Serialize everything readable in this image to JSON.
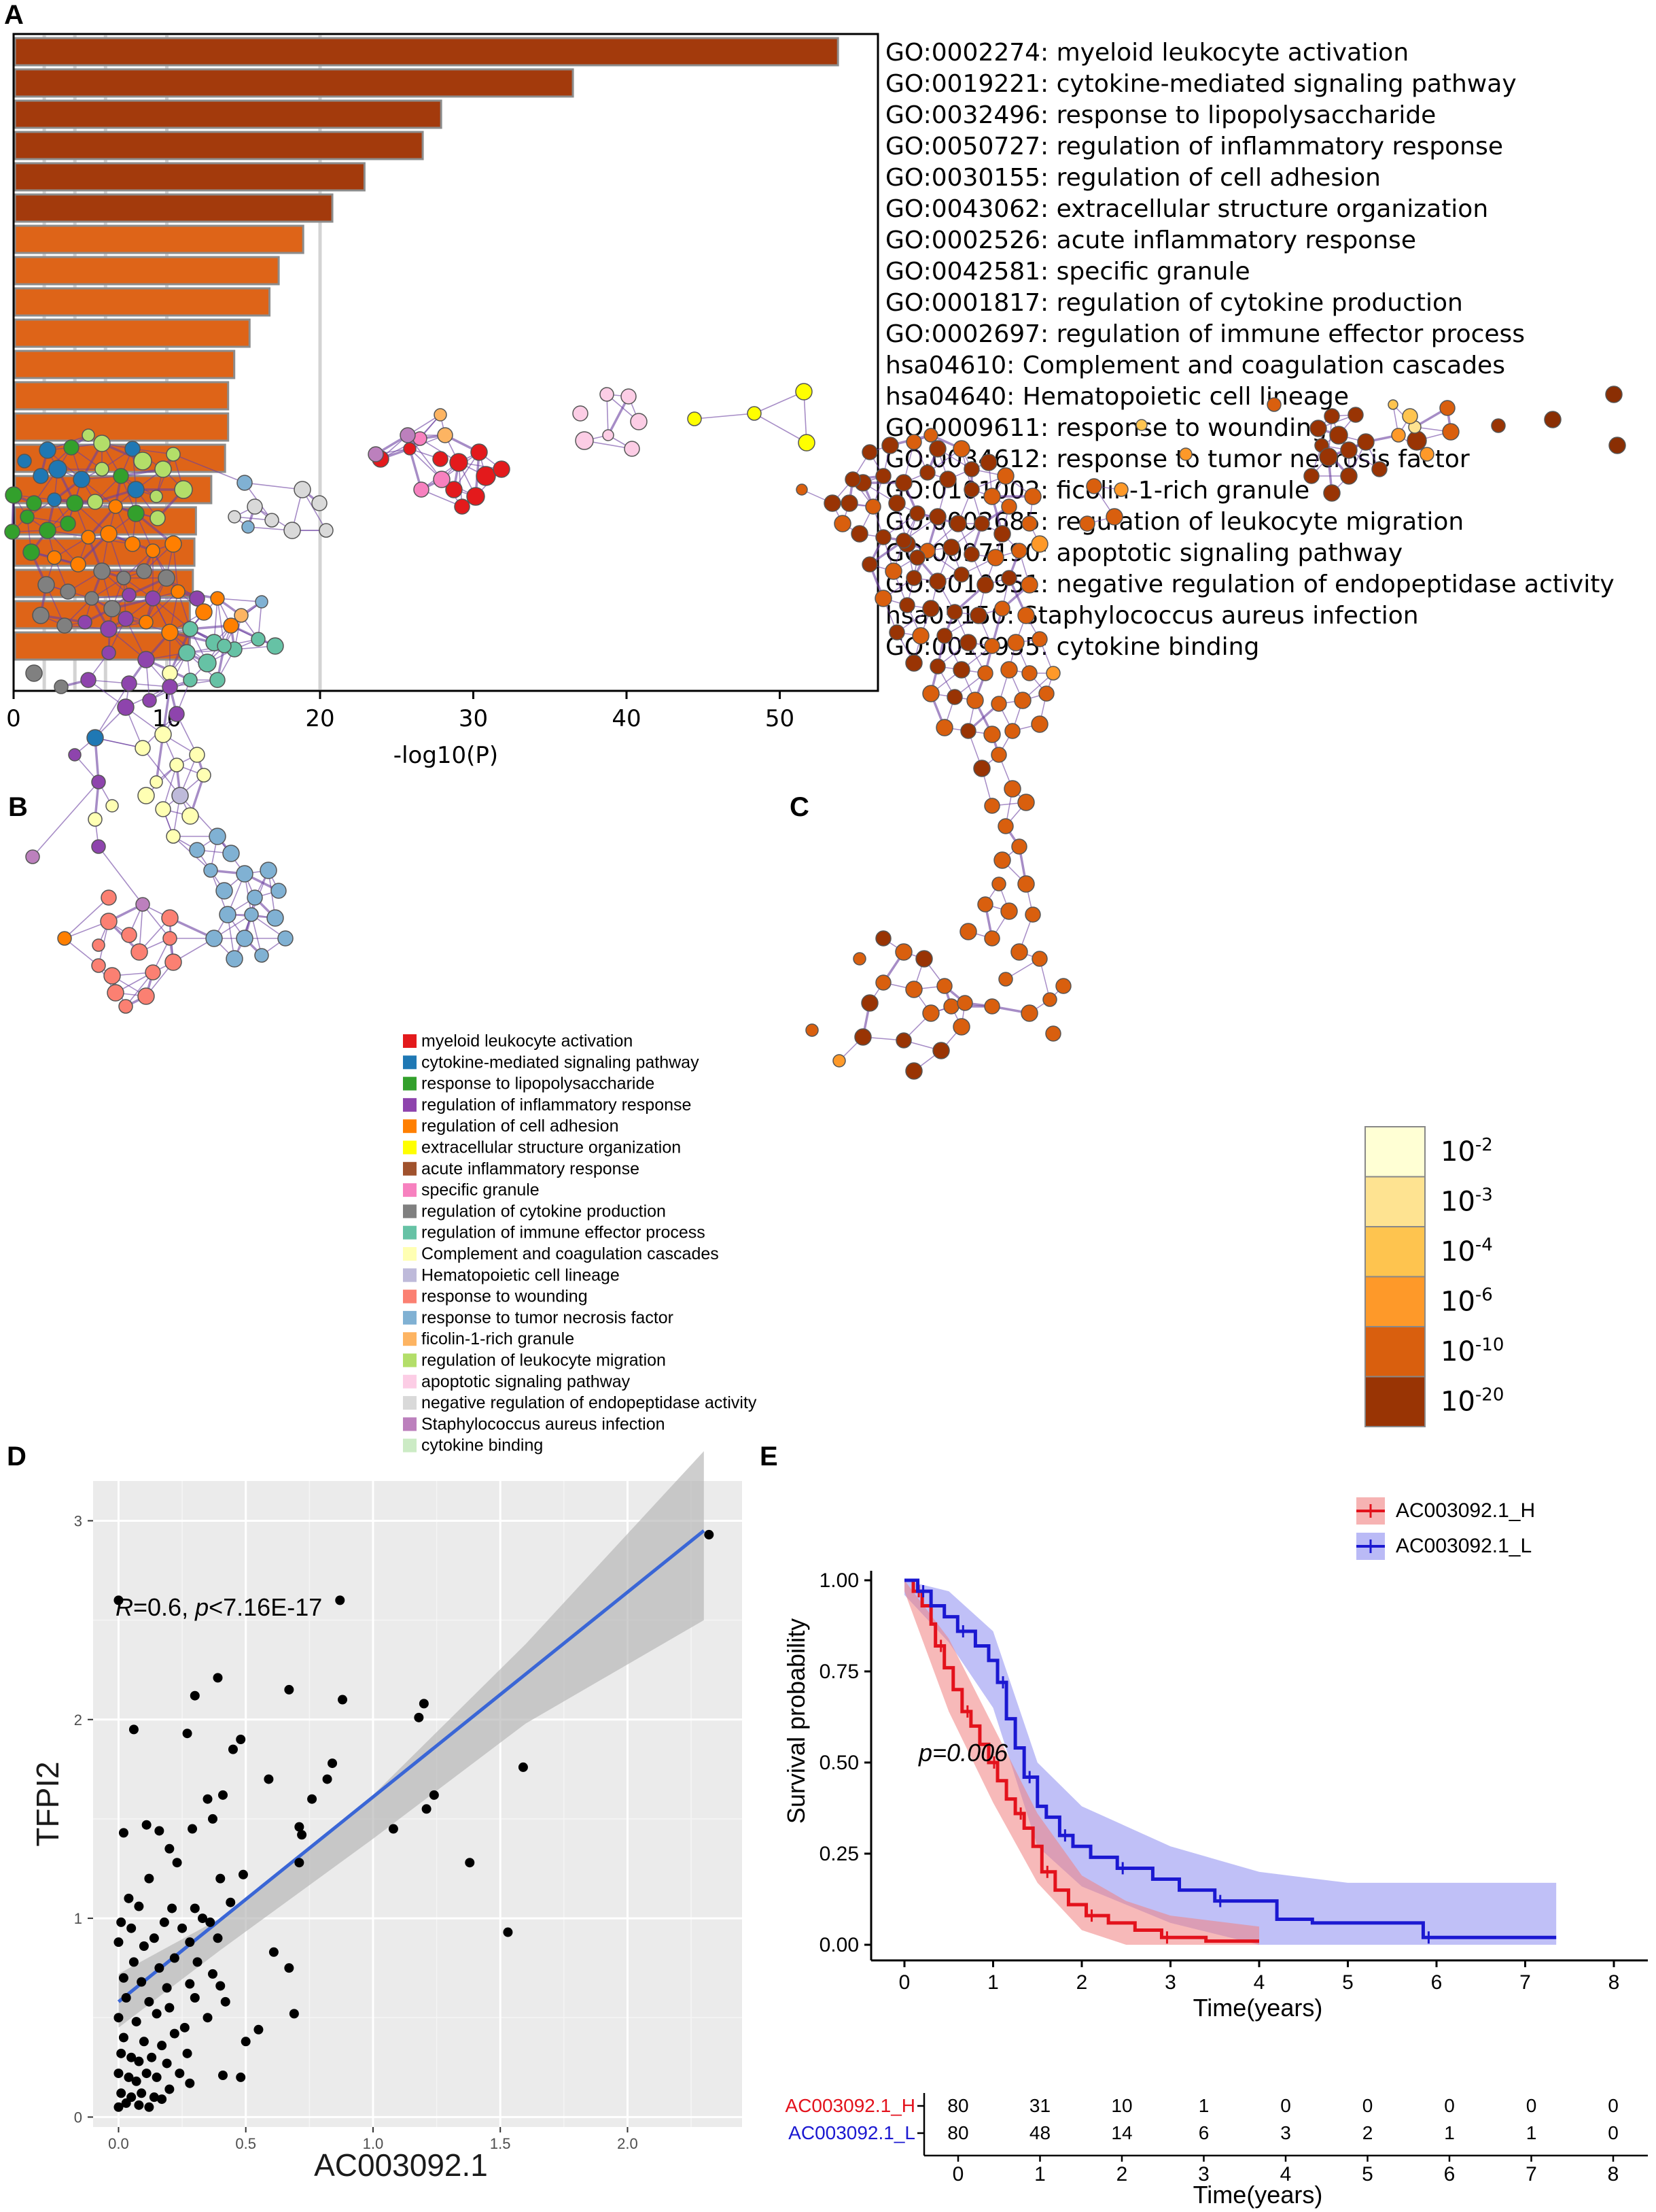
{
  "panel_labels": {
    "a": "A",
    "b": "B",
    "c": "C",
    "d": "D",
    "e": "E"
  },
  "colors": {
    "bar_dark": "#a33a0c",
    "bar_light": "#de6418",
    "reg_line": "#3a66d6",
    "km_high": "#e3121c",
    "km_low": "#1b18d1",
    "edge": "#6a3fa0"
  },
  "chart_data": [
    {
      "id": "A",
      "type": "bar",
      "orientation": "horizontal",
      "xlabel": "-log10(P)",
      "xlim": [
        0,
        56
      ],
      "xticks": [
        0,
        10,
        20,
        30,
        40,
        50
      ],
      "grid_lines": [
        2,
        4,
        6,
        10,
        20
      ],
      "categories": [
        "GO:0002274: myeloid leukocyte activation",
        "GO:0019221: cytokine-mediated signaling pathway",
        "GO:0032496: response to lipopolysaccharide",
        "GO:0050727: regulation of inflammatory response",
        "GO:0030155: regulation of cell adhesion",
        "GO:0043062: extracellular structure organization",
        "GO:0002526: acute inflammatory response",
        "GO:0042581: specific granule",
        "GO:0001817: regulation of cytokine production",
        "GO:0002697: regulation of immune effector process",
        "hsa04610: Complement and coagulation cascades",
        "hsa04640: Hematopoietic cell lineage",
        "GO:0009611: response to wounding",
        "GO:0034612: response to tumor necrosis factor",
        "GO:0101002: ficolin-1-rich granule",
        "GO:0002685: regulation of leukocyte migration",
        "GO:0097190: apoptotic signaling pathway",
        "GO:0010951: negative regulation of endopeptidase activity",
        "hsa05150: Staphylococcus aureus infection",
        "GO:0019955: cytokine binding"
      ],
      "values": [
        53.8,
        36.5,
        27.9,
        26.7,
        22.9,
        20.8,
        18.9,
        17.3,
        16.7,
        15.4,
        14.4,
        14.0,
        14.0,
        13.8,
        12.9,
        11.9,
        11.8,
        11.7,
        11.5,
        11.5
      ],
      "dark_count": 6
    },
    {
      "id": "B",
      "type": "network",
      "legend": [
        {
          "label": "myeloid leukocyte activation",
          "color": "#e31a1c"
        },
        {
          "label": "cytokine-mediated signaling pathway",
          "color": "#1f78b4"
        },
        {
          "label": "response to lipopolysaccharide",
          "color": "#33a02c"
        },
        {
          "label": "regulation of inflammatory response",
          "color": "#8e44ad"
        },
        {
          "label": "regulation of cell adhesion",
          "color": "#ff7f00"
        },
        {
          "label": "extracellular structure organization",
          "color": "#ffff00"
        },
        {
          "label": "acute inflammatory response",
          "color": "#a0522d"
        },
        {
          "label": "specific granule",
          "color": "#f781bf"
        },
        {
          "label": "regulation of cytokine production",
          "color": "#808080"
        },
        {
          "label": "regulation of immune effector process",
          "color": "#66c2a5"
        },
        {
          "label": "Complement and coagulation cascades",
          "color": "#ffffb3"
        },
        {
          "label": "Hematopoietic cell lineage",
          "color": "#bebada"
        },
        {
          "label": "response to wounding",
          "color": "#fb8072"
        },
        {
          "label": "response to tumor necrosis factor",
          "color": "#80b1d3"
        },
        {
          "label": "ficolin-1-rich granule",
          "color": "#fdb462"
        },
        {
          "label": "regulation of leukocyte migration",
          "color": "#b3de69"
        },
        {
          "label": "apoptotic signaling pathway",
          "color": "#fccde5"
        },
        {
          "label": "negative regulation of endopeptidase activity",
          "color": "#d9d9d9"
        },
        {
          "label": "Staphylococcus aureus infection",
          "color": "#bc80bd"
        },
        {
          "label": "cytokine binding",
          "color": "#ccebc5"
        }
      ]
    },
    {
      "id": "C",
      "type": "network",
      "colorbar": [
        {
          "base": "10",
          "exp": "-2",
          "color": "#ffffd4"
        },
        {
          "base": "10",
          "exp": "-3",
          "color": "#fee391"
        },
        {
          "base": "10",
          "exp": "-4",
          "color": "#fec44f"
        },
        {
          "base": "10",
          "exp": "-6",
          "color": "#fe9929"
        },
        {
          "base": "10",
          "exp": "-10",
          "color": "#d95f0e"
        },
        {
          "base": "10",
          "exp": "-20",
          "color": "#993404"
        }
      ]
    },
    {
      "id": "D",
      "type": "scatter",
      "xlabel": "AC003092.1",
      "ylabel": "TFPI2",
      "xlim": [
        -0.1,
        2.45
      ],
      "ylim": [
        -0.05,
        3.2
      ],
      "xticks": [
        0.0,
        0.5,
        1.0,
        1.5,
        2.0
      ],
      "xtick_labels": [
        "0.0",
        "0.5",
        "1.0",
        "1.5",
        "2.0"
      ],
      "yticks": [
        0,
        1,
        2,
        3
      ],
      "yticks_labels": [
        "0",
        "1",
        "2",
        "3"
      ],
      "annotation": {
        "r_sym": "R",
        "r_val": "=0.6, ",
        "p_sym": "p",
        "p_val": "<7.16E-17"
      },
      "regression": {
        "x0": 0.0,
        "y0": 0.58,
        "x1": 2.3,
        "y1": 2.95
      },
      "band": {
        "upper": [
          [
            0.0,
            0.72
          ],
          [
            0.4,
            1.0
          ],
          [
            1.0,
            1.62
          ],
          [
            1.6,
            2.38
          ],
          [
            2.3,
            3.35
          ]
        ],
        "lower": [
          [
            0.0,
            0.45
          ],
          [
            0.4,
            0.84
          ],
          [
            1.0,
            1.4
          ],
          [
            1.6,
            1.98
          ],
          [
            2.3,
            2.5
          ]
        ]
      },
      "points": [
        [
          0.0,
          2.6
        ],
        [
          2.32,
          2.93
        ],
        [
          0.87,
          2.6
        ],
        [
          0.39,
          2.21
        ],
        [
          0.3,
          2.12
        ],
        [
          0.67,
          2.15
        ],
        [
          0.88,
          2.1
        ],
        [
          1.2,
          2.08
        ],
        [
          1.18,
          2.01
        ],
        [
          0.48,
          1.9
        ],
        [
          0.27,
          1.93
        ],
        [
          0.45,
          1.85
        ],
        [
          1.59,
          1.76
        ],
        [
          0.84,
          1.78
        ],
        [
          0.06,
          1.95
        ],
        [
          0.59,
          1.7
        ],
        [
          1.24,
          1.62
        ],
        [
          0.82,
          1.7
        ],
        [
          0.76,
          1.6
        ],
        [
          1.21,
          1.55
        ],
        [
          0.35,
          1.6
        ],
        [
          0.41,
          1.62
        ],
        [
          0.02,
          1.43
        ],
        [
          0.11,
          1.47
        ],
        [
          0.16,
          1.44
        ],
        [
          0.29,
          1.45
        ],
        [
          0.37,
          1.5
        ],
        [
          0.71,
          1.46
        ],
        [
          0.72,
          1.42
        ],
        [
          1.08,
          1.45
        ],
        [
          0.2,
          1.35
        ],
        [
          0.23,
          1.28
        ],
        [
          0.71,
          1.28
        ],
        [
          1.38,
          1.28
        ],
        [
          0.4,
          1.2
        ],
        [
          0.49,
          1.22
        ],
        [
          0.12,
          1.2
        ],
        [
          0.04,
          1.1
        ],
        [
          0.08,
          1.06
        ],
        [
          0.21,
          1.05
        ],
        [
          0.3,
          1.05
        ],
        [
          0.44,
          1.08
        ],
        [
          0.01,
          0.98
        ],
        [
          0.05,
          0.95
        ],
        [
          0.18,
          0.98
        ],
        [
          0.25,
          0.95
        ],
        [
          0.33,
          1.0
        ],
        [
          0.36,
          0.98
        ],
        [
          0.0,
          0.88
        ],
        [
          0.1,
          0.86
        ],
        [
          0.14,
          0.9
        ],
        [
          0.28,
          0.88
        ],
        [
          0.39,
          0.9
        ],
        [
          0.61,
          0.83
        ],
        [
          1.53,
          0.93
        ],
        [
          0.06,
          0.78
        ],
        [
          0.16,
          0.75
        ],
        [
          0.22,
          0.8
        ],
        [
          0.31,
          0.78
        ],
        [
          0.37,
          0.72
        ],
        [
          0.02,
          0.7
        ],
        [
          0.09,
          0.68
        ],
        [
          0.19,
          0.65
        ],
        [
          0.28,
          0.67
        ],
        [
          0.4,
          0.66
        ],
        [
          0.67,
          0.75
        ],
        [
          0.03,
          0.6
        ],
        [
          0.12,
          0.58
        ],
        [
          0.2,
          0.55
        ],
        [
          0.3,
          0.6
        ],
        [
          0.42,
          0.58
        ],
        [
          0.0,
          0.5
        ],
        [
          0.07,
          0.48
        ],
        [
          0.15,
          0.52
        ],
        [
          0.26,
          0.45
        ],
        [
          0.35,
          0.5
        ],
        [
          0.69,
          0.52
        ],
        [
          0.02,
          0.4
        ],
        [
          0.1,
          0.38
        ],
        [
          0.17,
          0.36
        ],
        [
          0.22,
          0.42
        ],
        [
          0.55,
          0.44
        ],
        [
          0.01,
          0.32
        ],
        [
          0.05,
          0.3
        ],
        [
          0.08,
          0.28
        ],
        [
          0.13,
          0.3
        ],
        [
          0.19,
          0.27
        ],
        [
          0.27,
          0.32
        ],
        [
          0.5,
          0.38
        ],
        [
          0.0,
          0.22
        ],
        [
          0.04,
          0.2
        ],
        [
          0.07,
          0.18
        ],
        [
          0.11,
          0.22
        ],
        [
          0.15,
          0.2
        ],
        [
          0.24,
          0.22
        ],
        [
          0.41,
          0.21
        ],
        [
          0.48,
          0.2
        ],
        [
          0.01,
          0.12
        ],
        [
          0.05,
          0.1
        ],
        [
          0.09,
          0.12
        ],
        [
          0.14,
          0.1
        ],
        [
          0.2,
          0.14
        ],
        [
          0.28,
          0.17
        ],
        [
          0.0,
          0.05
        ],
        [
          0.03,
          0.07
        ],
        [
          0.08,
          0.06
        ],
        [
          0.12,
          0.05
        ],
        [
          0.17,
          0.09
        ]
      ]
    },
    {
      "id": "E",
      "type": "line",
      "subtype": "kaplan-meier",
      "xlabel": "Time(years)",
      "ylabel": "Survival probability",
      "xlim": [
        -0.4,
        8.3
      ],
      "ylim": [
        -0.05,
        1.05
      ],
      "xticks": [
        0,
        1,
        2,
        3,
        4,
        5,
        6,
        7,
        8
      ],
      "yticks": [
        0.0,
        0.25,
        0.5,
        0.75,
        1.0
      ],
      "ytick_labels": [
        "0.00",
        "0.25",
        "0.50",
        "0.75",
        "1.00"
      ],
      "pvalue": "p=0.006",
      "series": [
        {
          "name": "AC003092.1_H",
          "steps": [
            [
              0,
              1.0
            ],
            [
              0.1,
              0.97
            ],
            [
              0.2,
              0.93
            ],
            [
              0.3,
              0.88
            ],
            [
              0.35,
              0.82
            ],
            [
              0.45,
              0.76
            ],
            [
              0.55,
              0.7
            ],
            [
              0.65,
              0.64
            ],
            [
              0.75,
              0.6
            ],
            [
              0.85,
              0.55
            ],
            [
              0.95,
              0.5
            ],
            [
              1.05,
              0.45
            ],
            [
              1.15,
              0.4
            ],
            [
              1.25,
              0.36
            ],
            [
              1.35,
              0.32
            ],
            [
              1.45,
              0.27
            ],
            [
              1.55,
              0.2
            ],
            [
              1.7,
              0.15
            ],
            [
              1.85,
              0.11
            ],
            [
              2.05,
              0.08
            ],
            [
              2.3,
              0.06
            ],
            [
              2.6,
              0.04
            ],
            [
              2.9,
              0.02
            ],
            [
              3.4,
              0.01
            ],
            [
              4.0,
              0.01
            ]
          ],
          "band_upper": [
            [
              0,
              1.0
            ],
            [
              0.5,
              0.84
            ],
            [
              1.0,
              0.6
            ],
            [
              1.5,
              0.36
            ],
            [
              2.0,
              0.19
            ],
            [
              2.5,
              0.12
            ],
            [
              3.0,
              0.08
            ],
            [
              4.0,
              0.05
            ]
          ],
          "band_lower": [
            [
              0,
              0.97
            ],
            [
              0.5,
              0.64
            ],
            [
              1.0,
              0.39
            ],
            [
              1.5,
              0.17
            ],
            [
              2.0,
              0.04
            ],
            [
              2.5,
              0.0
            ],
            [
              4.0,
              0.0
            ]
          ]
        },
        {
          "name": "AC003092.1_L",
          "steps": [
            [
              0,
              1.0
            ],
            [
              0.15,
              0.97
            ],
            [
              0.3,
              0.93
            ],
            [
              0.45,
              0.9
            ],
            [
              0.6,
              0.86
            ],
            [
              0.8,
              0.82
            ],
            [
              0.95,
              0.78
            ],
            [
              1.05,
              0.72
            ],
            [
              1.15,
              0.62
            ],
            [
              1.25,
              0.54
            ],
            [
              1.35,
              0.46
            ],
            [
              1.5,
              0.38
            ],
            [
              1.6,
              0.35
            ],
            [
              1.75,
              0.3
            ],
            [
              1.9,
              0.27
            ],
            [
              2.1,
              0.24
            ],
            [
              2.4,
              0.21
            ],
            [
              2.8,
              0.18
            ],
            [
              3.1,
              0.15
            ],
            [
              3.5,
              0.12
            ],
            [
              4.2,
              0.07
            ],
            [
              4.6,
              0.06
            ],
            [
              5.85,
              0.02
            ],
            [
              7.35,
              0.02
            ]
          ],
          "band_upper": [
            [
              0,
              1.0
            ],
            [
              0.5,
              0.97
            ],
            [
              1.0,
              0.86
            ],
            [
              1.5,
              0.5
            ],
            [
              2.0,
              0.38
            ],
            [
              3.0,
              0.27
            ],
            [
              4.0,
              0.2
            ],
            [
              5.0,
              0.17
            ],
            [
              7.35,
              0.17
            ]
          ],
          "band_lower": [
            [
              0,
              0.96
            ],
            [
              0.5,
              0.83
            ],
            [
              1.0,
              0.65
            ],
            [
              1.5,
              0.27
            ],
            [
              2.0,
              0.16
            ],
            [
              3.0,
              0.06
            ],
            [
              4.0,
              0.0
            ],
            [
              7.35,
              0.0
            ]
          ]
        }
      ],
      "risk_table": {
        "xlabel": "Time(years)",
        "times": [
          0,
          1,
          2,
          3,
          4,
          5,
          6,
          7,
          8
        ],
        "rows": [
          {
            "name": "AC003092.1_H",
            "values": [
              80,
              31,
              10,
              1,
              0,
              0,
              0,
              0,
              0
            ]
          },
          {
            "name": "AC003092.1_L",
            "values": [
              80,
              48,
              14,
              6,
              3,
              2,
              1,
              1,
              0
            ]
          }
        ]
      }
    }
  ]
}
